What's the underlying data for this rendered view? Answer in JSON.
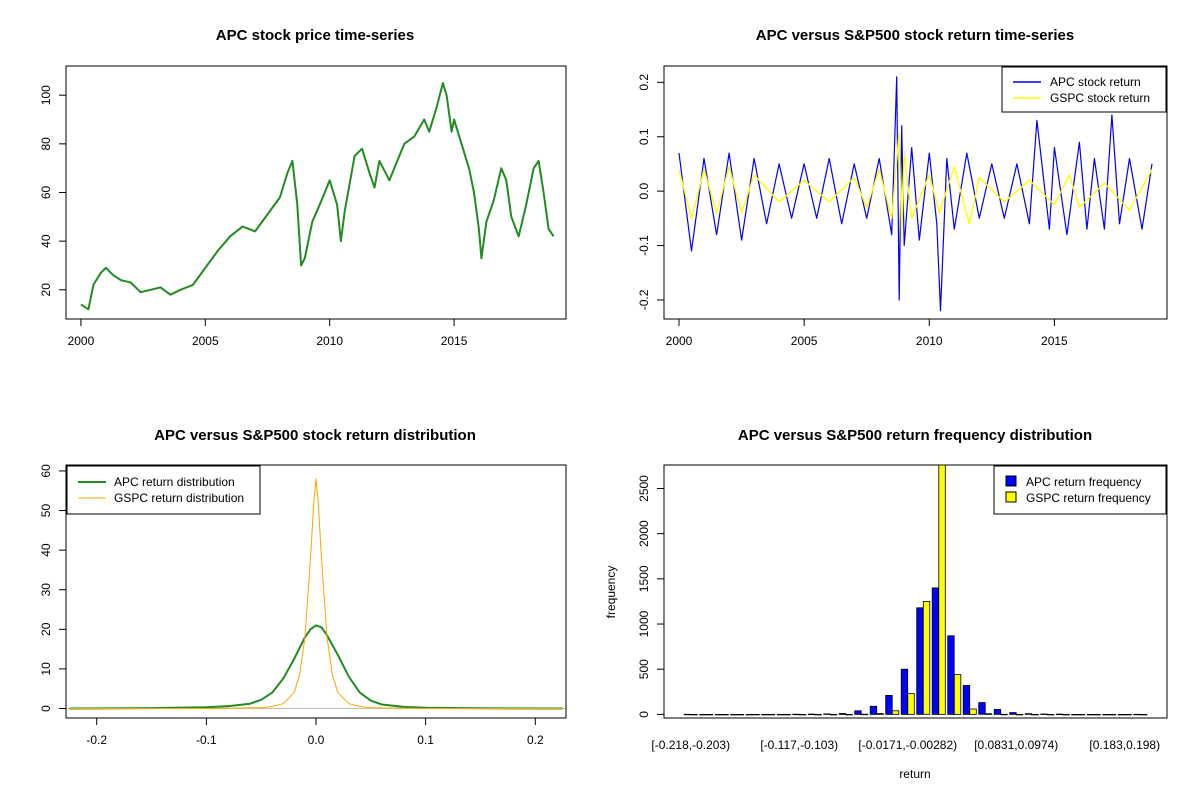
{
  "chart_data": [
    {
      "type": "line",
      "title": "APC stock price time-series",
      "xlabel": "",
      "ylabel": "",
      "xlim": [
        1999.4,
        2019.5
      ],
      "ylim": [
        8,
        112
      ],
      "x_ticks": [
        "2000",
        "2005",
        "2010",
        "2015"
      ],
      "y_ticks": [
        "20",
        "40",
        "60",
        "80",
        "100"
      ],
      "series": [
        {
          "name": "APC stock price",
          "color": "#228B22",
          "x": [
            2000.0,
            2000.3,
            2000.5,
            2000.8,
            2001.0,
            2001.3,
            2001.6,
            2002.0,
            2002.4,
            2002.8,
            2003.2,
            2003.6,
            2004.0,
            2004.5,
            2005.0,
            2005.5,
            2006.0,
            2006.5,
            2007.0,
            2007.5,
            2008.0,
            2008.3,
            2008.5,
            2008.7,
            2008.85,
            2009.0,
            2009.3,
            2009.6,
            2010.0,
            2010.3,
            2010.45,
            2010.6,
            2011.0,
            2011.3,
            2011.6,
            2011.8,
            2012.0,
            2012.4,
            2012.8,
            2013.0,
            2013.4,
            2013.8,
            2014.0,
            2014.3,
            2014.55,
            2014.7,
            2014.9,
            2015.0,
            2015.3,
            2015.6,
            2015.8,
            2016.0,
            2016.1,
            2016.3,
            2016.6,
            2016.9,
            2017.1,
            2017.3,
            2017.6,
            2017.9,
            2018.2,
            2018.4,
            2018.6,
            2018.8,
            2019.0
          ],
          "values": [
            14,
            12,
            22,
            27,
            29,
            26,
            24,
            23,
            19,
            20,
            21,
            18,
            20,
            22,
            29,
            36,
            42,
            46,
            44,
            51,
            58,
            68,
            73,
            55,
            30,
            33,
            48,
            55,
            65,
            55,
            40,
            52,
            75,
            78,
            68,
            62,
            73,
            65,
            75,
            80,
            83,
            90,
            85,
            95,
            105,
            100,
            85,
            90,
            80,
            70,
            60,
            45,
            33,
            48,
            57,
            70,
            65,
            50,
            42,
            55,
            70,
            73,
            60,
            45,
            42
          ]
        }
      ]
    },
    {
      "type": "line",
      "title": "APC versus S&P500 stock return time-series",
      "xlim": [
        1999.4,
        2019.5
      ],
      "ylim": [
        -0.235,
        0.23
      ],
      "x_ticks": [
        "2000",
        "2005",
        "2010",
        "2015"
      ],
      "y_ticks": [
        "-0.2",
        "-0.1",
        "0.0",
        "0.1",
        "0.2"
      ],
      "legend": {
        "position": "top-right",
        "labels": [
          "APC stock return",
          "GSPC stock return"
        ]
      },
      "series": [
        {
          "name": "APC stock return",
          "color": "#0000FF",
          "x": [
            2000.0,
            2000.5,
            2001.0,
            2001.5,
            2002.0,
            2002.5,
            2003.0,
            2003.5,
            2004.0,
            2004.5,
            2005.0,
            2005.5,
            2006.0,
            2006.5,
            2007.0,
            2007.5,
            2008.0,
            2008.5,
            2008.7,
            2008.8,
            2008.9,
            2009.0,
            2009.3,
            2009.6,
            2010.0,
            2010.3,
            2010.45,
            2010.7,
            2011.0,
            2011.5,
            2012.0,
            2012.5,
            2013.0,
            2013.5,
            2014.0,
            2014.3,
            2014.8,
            2015.0,
            2015.5,
            2016.0,
            2016.3,
            2016.6,
            2017.0,
            2017.3,
            2017.6,
            2018.0,
            2018.5,
            2018.9
          ],
          "values": [
            0.07,
            -0.11,
            0.06,
            -0.08,
            0.07,
            -0.09,
            0.06,
            -0.06,
            0.05,
            -0.05,
            0.05,
            -0.05,
            0.06,
            -0.06,
            0.05,
            -0.05,
            0.06,
            -0.08,
            0.21,
            -0.2,
            0.12,
            -0.1,
            0.08,
            -0.09,
            0.07,
            -0.06,
            -0.22,
            0.06,
            -0.07,
            0.07,
            -0.05,
            0.05,
            -0.05,
            0.05,
            -0.06,
            0.13,
            -0.07,
            0.08,
            -0.08,
            0.09,
            -0.07,
            0.06,
            -0.07,
            0.14,
            -0.06,
            0.06,
            -0.07,
            0.05
          ]
        },
        {
          "name": "GSPC stock return",
          "color": "#FFFF00",
          "x": [
            2000.0,
            2000.5,
            2001.0,
            2001.5,
            2002.0,
            2002.5,
            2003.0,
            2004.0,
            2005.0,
            2006.0,
            2007.0,
            2007.5,
            2008.0,
            2008.5,
            2008.8,
            2008.9,
            2009.0,
            2009.3,
            2010.0,
            2010.4,
            2011.0,
            2011.6,
            2012.0,
            2013.0,
            2014.0,
            2015.0,
            2015.6,
            2016.0,
            2017.0,
            2018.0,
            2018.9
          ],
          "values": [
            0.04,
            -0.05,
            0.04,
            -0.04,
            0.045,
            -0.04,
            0.03,
            -0.02,
            0.02,
            -0.02,
            0.025,
            -0.03,
            0.04,
            -0.05,
            0.11,
            -0.09,
            0.07,
            -0.05,
            0.03,
            -0.04,
            0.045,
            -0.06,
            0.025,
            -0.02,
            0.02,
            -0.025,
            0.03,
            -0.03,
            0.015,
            -0.035,
            0.04
          ]
        }
      ]
    },
    {
      "type": "line",
      "title": "APC versus S&P500 stock return distribution",
      "xlim": [
        -0.228,
        0.228
      ],
      "ylim": [
        -2.4,
        61.5
      ],
      "x_ticks": [
        "-0.2",
        "-0.1",
        "0.0",
        "0.1",
        "0.2"
      ],
      "y_ticks": [
        "0",
        "10",
        "20",
        "30",
        "40",
        "50",
        "60"
      ],
      "legend": {
        "position": "top-left",
        "labels": [
          "APC return distribution",
          "GSPC return distribution"
        ]
      },
      "series": [
        {
          "name": "APC return distribution",
          "color": "#228B22",
          "x": [
            -0.225,
            -0.15,
            -0.1,
            -0.08,
            -0.06,
            -0.05,
            -0.04,
            -0.03,
            -0.02,
            -0.01,
            -0.005,
            0.0,
            0.005,
            0.01,
            0.02,
            0.03,
            0.04,
            0.05,
            0.06,
            0.08,
            0.1,
            0.15,
            0.225
          ],
          "values": [
            0.0,
            0.1,
            0.3,
            0.6,
            1.2,
            2.2,
            4.0,
            7.5,
            12.5,
            18.0,
            20.0,
            21.0,
            20.5,
            18.5,
            13.5,
            8.0,
            4.0,
            2.0,
            1.0,
            0.4,
            0.2,
            0.05,
            0.0
          ]
        },
        {
          "name": "GSPC return distribution",
          "color": "#FFA500",
          "x": [
            -0.225,
            -0.1,
            -0.05,
            -0.04,
            -0.03,
            -0.02,
            -0.015,
            -0.01,
            -0.005,
            -0.002,
            0.0,
            0.002,
            0.005,
            0.01,
            0.015,
            0.02,
            0.03,
            0.04,
            0.05,
            0.1,
            0.225
          ],
          "values": [
            0.0,
            0.0,
            0.2,
            0.5,
            1.2,
            4.0,
            8.5,
            18.0,
            38.0,
            52.0,
            58.0,
            52.0,
            38.0,
            18.0,
            8.5,
            4.0,
            1.2,
            0.5,
            0.2,
            0.0,
            0.0
          ]
        }
      ]
    },
    {
      "type": "bar",
      "title": "APC versus S&P500 return frequency distribution",
      "xlabel": "return",
      "ylabel": "frequency",
      "ylim": [
        -40,
        2760
      ],
      "y_ticks": [
        "0",
        "500",
        "1000",
        "1500",
        "2000",
        "2500"
      ],
      "x_tick_labels": [
        "[-0.218,-0.203)",
        "[-0.117,-0.103)",
        "[-0.0171,-0.00282)",
        "[0.0831,0.0974)",
        "[0.183,0.198)"
      ],
      "legend": {
        "position": "top-right",
        "labels": [
          "APC return frequency",
          "GSPC return frequency"
        ]
      },
      "categories": [
        "b1",
        "b2",
        "b3",
        "b4",
        "b5",
        "b6",
        "b7",
        "b8",
        "b9",
        "b10",
        "b11",
        "b12",
        "b13",
        "b14",
        "b15",
        "b16",
        "b17",
        "b18",
        "b19",
        "b20",
        "b21",
        "b22",
        "b23",
        "b24",
        "b25",
        "b26",
        "b27",
        "b28",
        "b29",
        "b30"
      ],
      "series": [
        {
          "name": "APC return frequency",
          "color": "#0000FF",
          "values": [
            1,
            0,
            0,
            0,
            0,
            0,
            0,
            2,
            3,
            5,
            10,
            40,
            90,
            210,
            500,
            1180,
            1400,
            870,
            320,
            130,
            55,
            20,
            8,
            4,
            3,
            0,
            0,
            0,
            0,
            1
          ]
        },
        {
          "name": "GSPC return frequency",
          "color": "#FFFF00",
          "values": [
            0,
            0,
            0,
            0,
            0,
            0,
            0,
            0,
            0,
            0,
            0,
            2,
            10,
            40,
            230,
            1250,
            2760,
            440,
            60,
            8,
            1,
            0,
            0,
            0,
            0,
            0,
            0,
            0,
            0,
            0
          ]
        }
      ]
    }
  ]
}
